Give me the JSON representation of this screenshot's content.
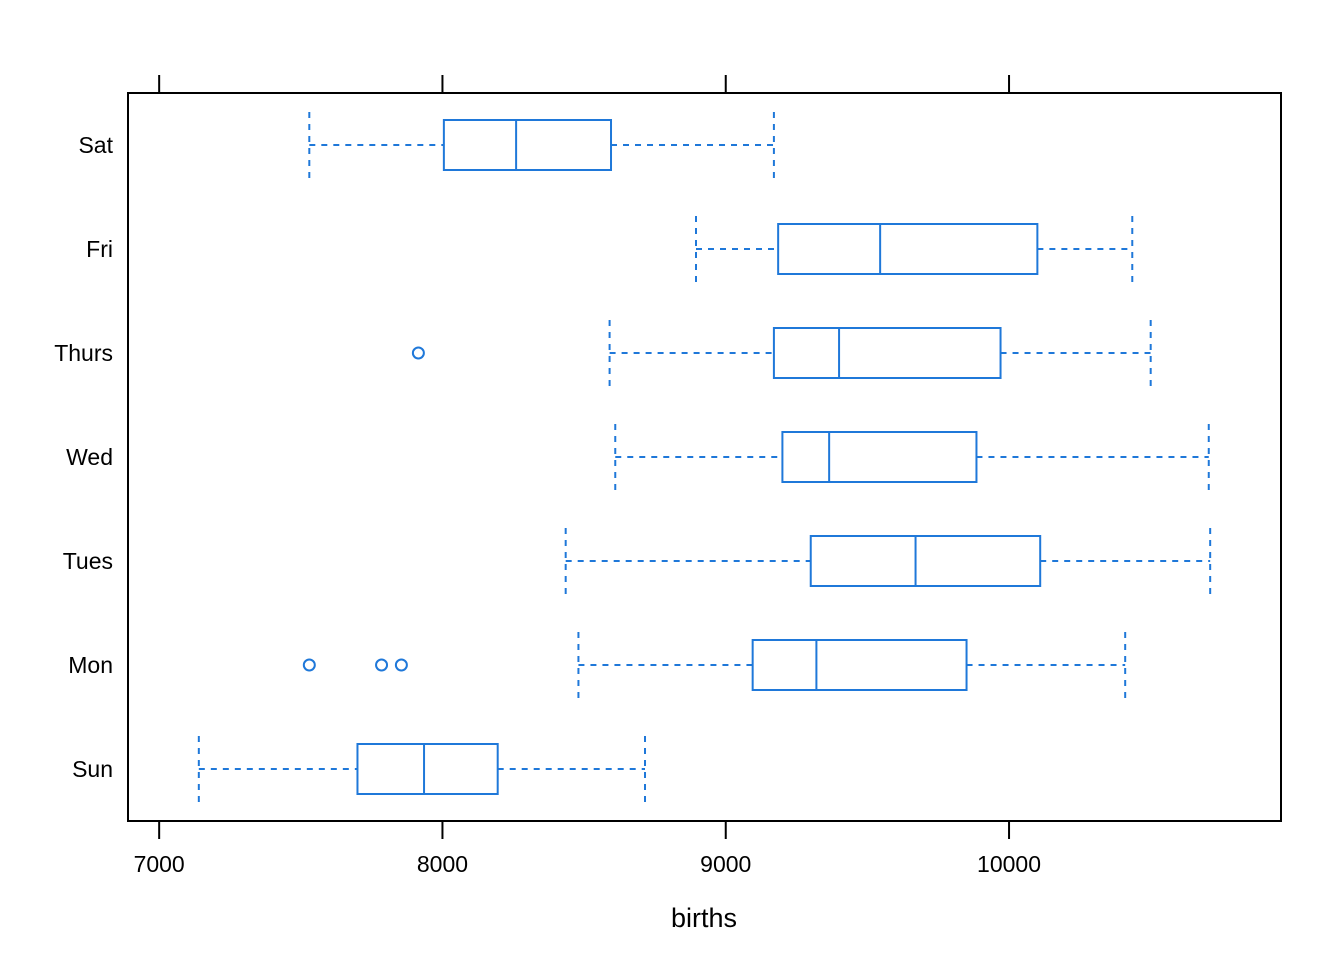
{
  "chart_data": {
    "type": "boxplot",
    "orientation": "horizontal",
    "xlabel": "births",
    "ylabel": "",
    "xlim": [
      6890,
      10960
    ],
    "xticks": [
      7000,
      8000,
      9000,
      10000
    ],
    "xtick_labels": [
      "7000",
      "8000",
      "9000",
      "10000"
    ],
    "grid": false,
    "legend": "none",
    "color": "#1f78d9",
    "categories": [
      "Sun",
      "Mon",
      "Tues",
      "Wed",
      "Thurs",
      "Fri",
      "Sat"
    ],
    "boxes": [
      {
        "name": "Sun",
        "whisker_low": 7140,
        "q1": 7700,
        "median": 7935,
        "q3": 8195,
        "whisker_high": 8715,
        "outliers": []
      },
      {
        "name": "Mon",
        "whisker_low": 8480,
        "q1": 9095,
        "median": 9320,
        "q3": 9850,
        "whisker_high": 10410,
        "outliers": [
          7530,
          7785,
          7855
        ]
      },
      {
        "name": "Tues",
        "whisker_low": 8435,
        "q1": 9300,
        "median": 9670,
        "q3": 10110,
        "whisker_high": 10710,
        "outliers": []
      },
      {
        "name": "Wed",
        "whisker_low": 8610,
        "q1": 9200,
        "median": 9365,
        "q3": 9885,
        "whisker_high": 10705,
        "outliers": []
      },
      {
        "name": "Thurs",
        "whisker_low": 8590,
        "q1": 9170,
        "median": 9400,
        "q3": 9970,
        "whisker_high": 10500,
        "outliers": [
          7915
        ]
      },
      {
        "name": "Fri",
        "whisker_low": 8895,
        "q1": 9185,
        "median": 9545,
        "q3": 10100,
        "whisker_high": 10435,
        "outliers": []
      },
      {
        "name": "Sat",
        "whisker_low": 7530,
        "q1": 8005,
        "median": 8260,
        "q3": 8595,
        "whisker_high": 9170,
        "outliers": []
      }
    ]
  }
}
